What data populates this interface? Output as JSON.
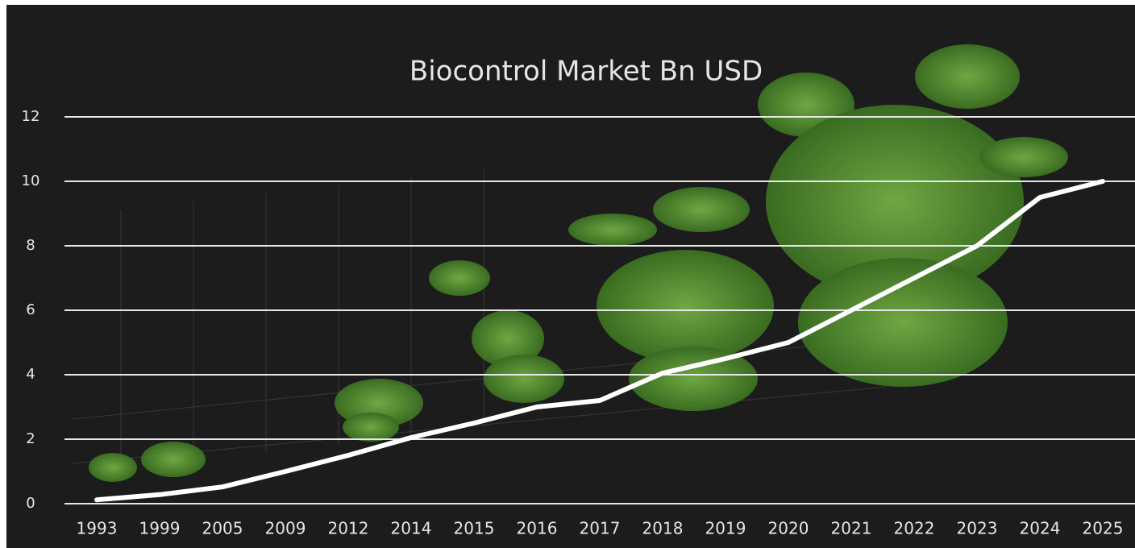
{
  "chart_data": {
    "type": "line",
    "title": "Biocontrol Market Bn USD",
    "categories": [
      "1993",
      "1999",
      "2005",
      "2009",
      "2012",
      "2014",
      "2015",
      "2016",
      "2017",
      "2018",
      "2019",
      "2020",
      "2021",
      "2022",
      "2023",
      "2024",
      "2025"
    ],
    "series": [
      {
        "name": "Biocontrol Market",
        "color": "#ffffff",
        "values": [
          0.12,
          0.28,
          0.52,
          1.0,
          1.5,
          2.05,
          2.5,
          3.0,
          3.2,
          4.05,
          4.5,
          5.0,
          6.0,
          7.0,
          8.0,
          9.5,
          10.0
        ]
      }
    ],
    "ylim": [
      0,
      12
    ],
    "yticks": [
      0,
      2,
      4,
      6,
      8,
      10,
      12
    ],
    "grid": true
  }
}
